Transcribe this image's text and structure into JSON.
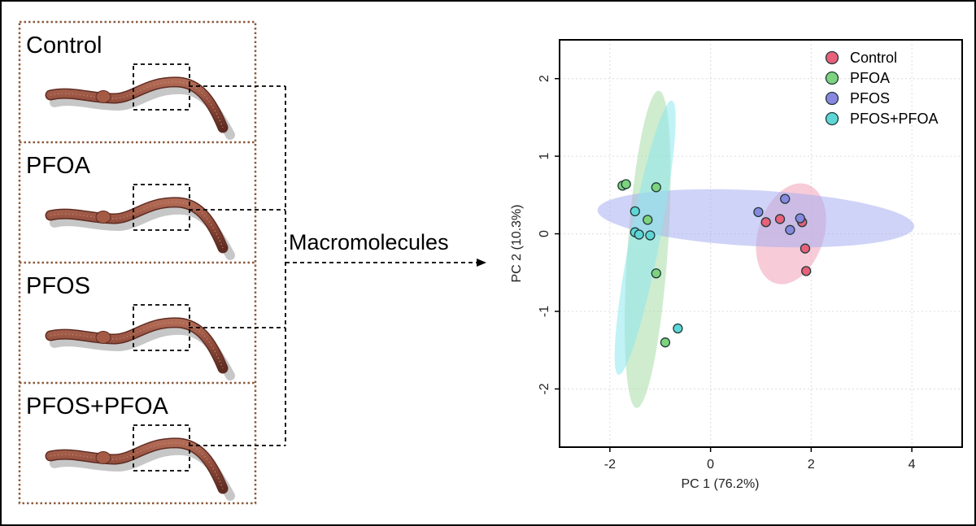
{
  "panels": [
    {
      "label": "Control"
    },
    {
      "label": "PFOA"
    },
    {
      "label": "PFOS"
    },
    {
      "label": "PFOS+PFOA"
    }
  ],
  "arrow_label": "Macromolecules",
  "colors": {
    "panel_border": "#8b5a3c",
    "worm_body": "#8e4a3a",
    "worm_dark": "#5e2c22",
    "worm_shadow": "#b9b9b9"
  },
  "chart_data": {
    "type": "scatter",
    "xlabel": "PC 1 (76.2%)",
    "ylabel": "PC 2 (10.3%)",
    "xlim": [
      -3.0,
      5.0
    ],
    "ylim": [
      -2.75,
      2.5
    ],
    "xticks": [
      -2,
      0,
      2,
      4
    ],
    "yticks": [
      -2,
      -1,
      0,
      1,
      2
    ],
    "grid": true,
    "legend_position": "top-right",
    "series": [
      {
        "name": "Control",
        "color": "#e8607a",
        "ellipse_color": "#f0a0b8",
        "points": [
          [
            1.1,
            0.15
          ],
          [
            1.38,
            0.19
          ],
          [
            1.82,
            0.15
          ],
          [
            1.88,
            -0.19
          ],
          [
            1.9,
            -0.48
          ]
        ],
        "ellipse": {
          "cx": 1.6,
          "cy": 0.0,
          "rx": 0.65,
          "ry": 0.67,
          "angle": 18
        }
      },
      {
        "name": "PFOA",
        "color": "#7ed37e",
        "ellipse_color": "#a8dca8",
        "points": [
          [
            -1.75,
            0.62
          ],
          [
            -1.68,
            0.64
          ],
          [
            -1.08,
            0.6
          ],
          [
            -1.25,
            0.18
          ],
          [
            -1.08,
            -0.51
          ],
          [
            -0.9,
            -1.4
          ]
        ],
        "ellipse": {
          "cx": -1.25,
          "cy": -0.2,
          "rx": 0.4,
          "ry": 2.05,
          "angle": 4
        }
      },
      {
        "name": "PFOS",
        "color": "#8888e0",
        "ellipse_color": "#a8aef0",
        "points": [
          [
            0.95,
            0.28
          ],
          [
            1.48,
            0.45
          ],
          [
            1.58,
            0.05
          ],
          [
            1.78,
            0.2
          ]
        ],
        "ellipse": {
          "cx": 0.9,
          "cy": 0.2,
          "rx": 3.15,
          "ry": 0.36,
          "angle": 3
        }
      },
      {
        "name": "PFOS+PFOA",
        "color": "#5fd6d6",
        "ellipse_color": "#8ee8ee",
        "points": [
          [
            -1.5,
            0.29
          ],
          [
            -1.5,
            0.02
          ],
          [
            -1.42,
            -0.01
          ],
          [
            -1.2,
            -0.02
          ],
          [
            -0.65,
            -1.22
          ]
        ],
        "ellipse": {
          "cx": -1.3,
          "cy": -0.05,
          "rx": 0.3,
          "ry": 1.8,
          "angle": 11
        }
      }
    ]
  }
}
